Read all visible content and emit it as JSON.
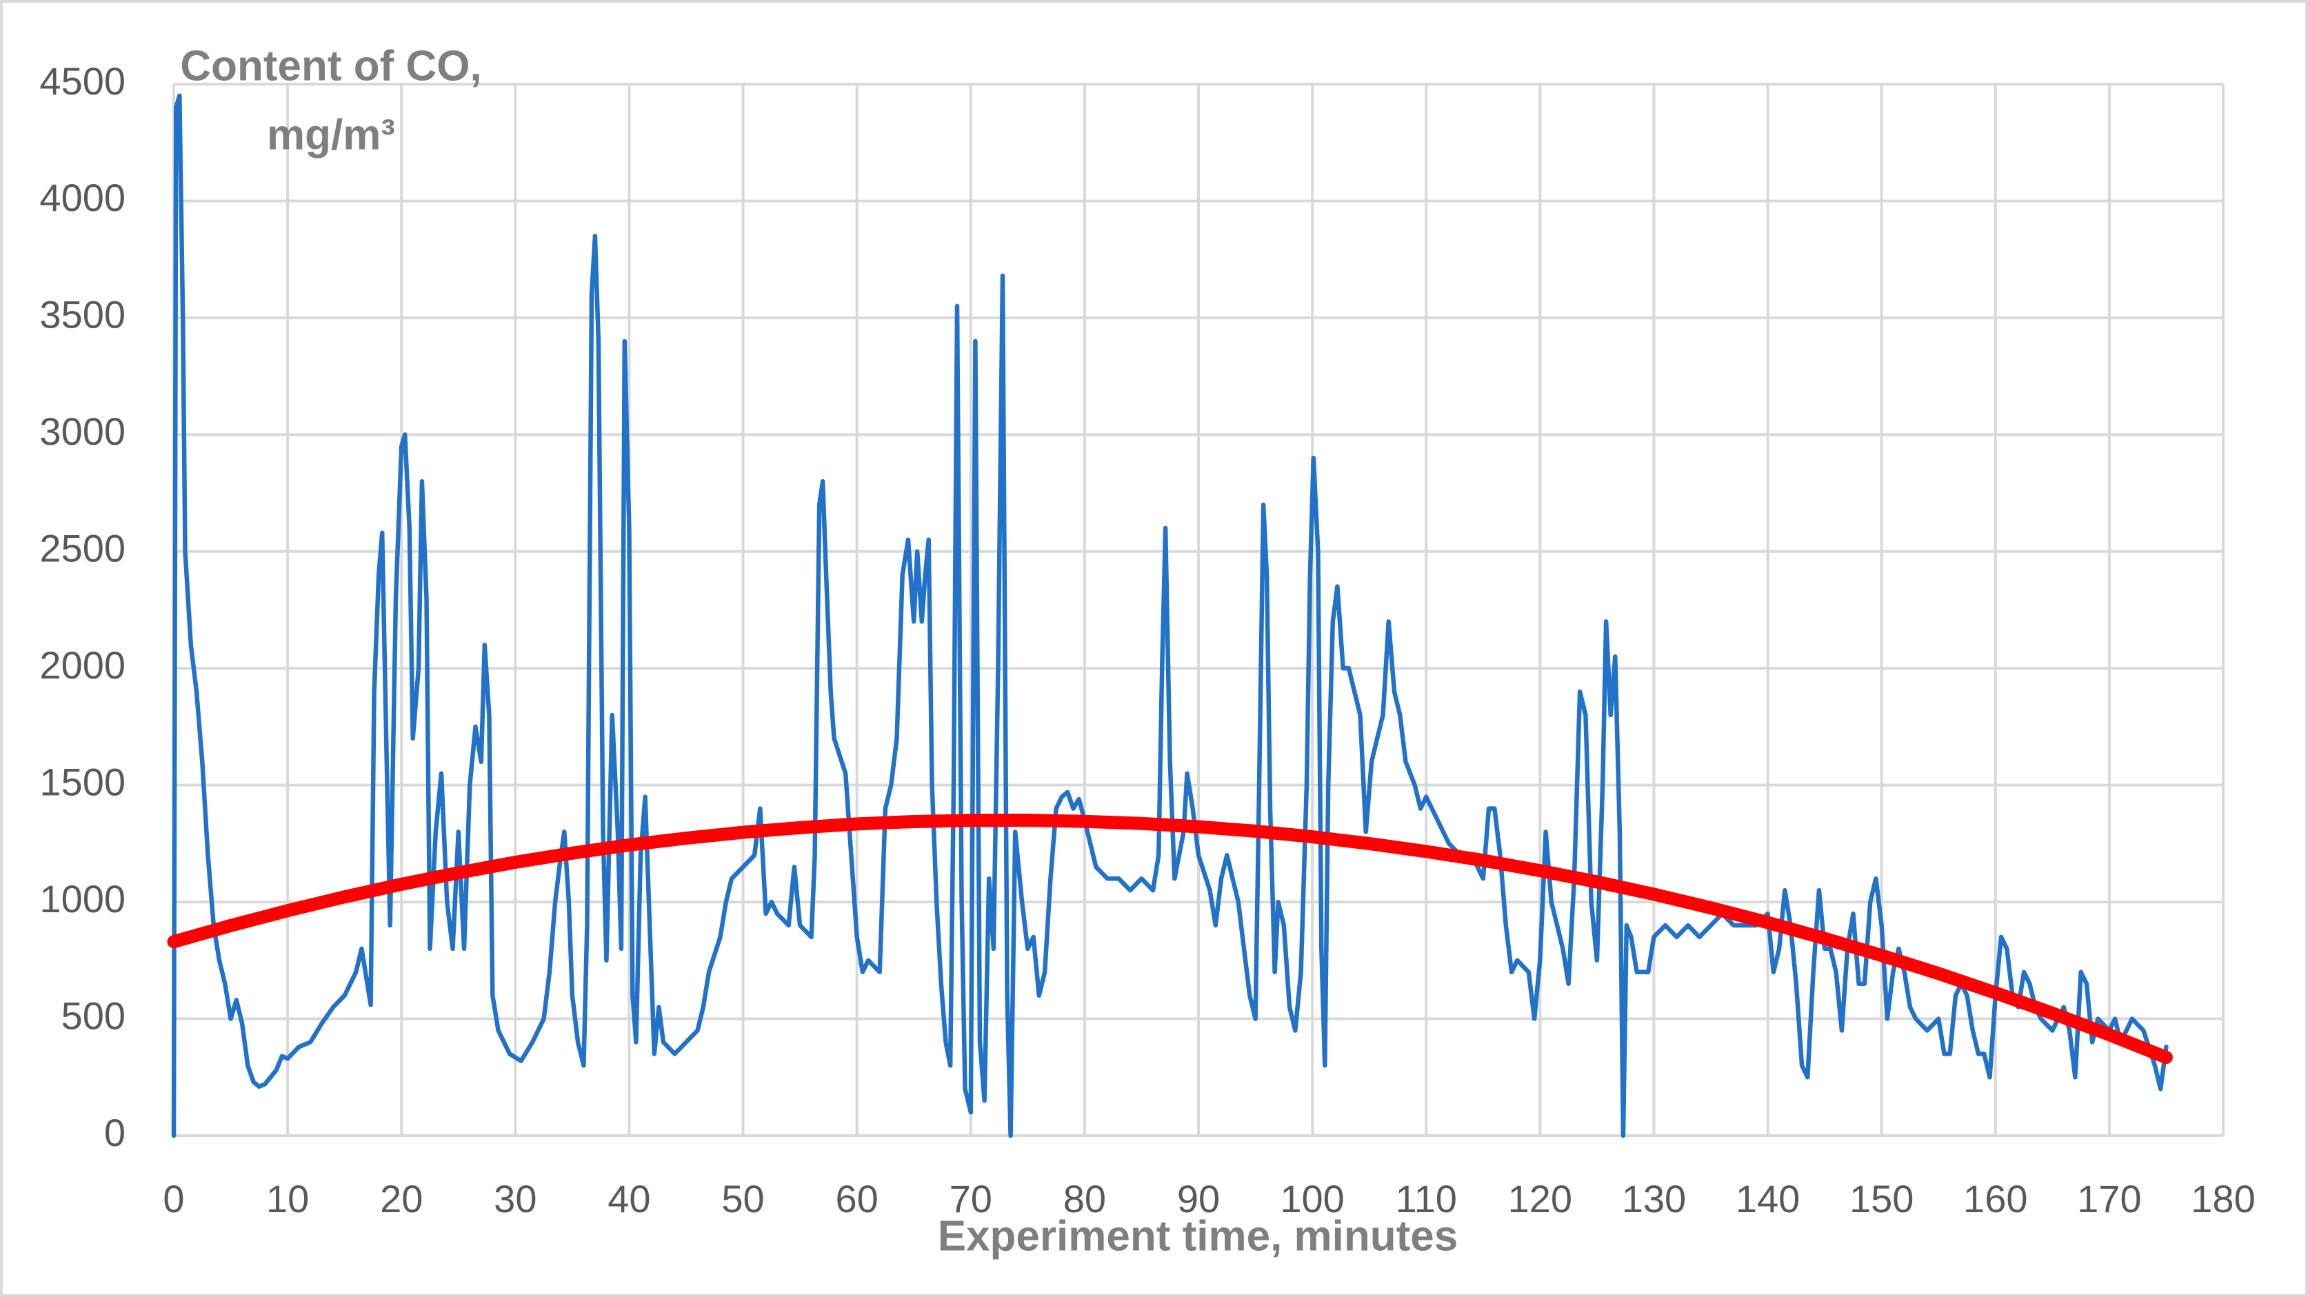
{
  "chart_data": {
    "type": "line",
    "ylabel": [
      "Content of CO,",
      "mg/m³"
    ],
    "xlabel": "Experiment time, minutes",
    "xlim": [
      0,
      180
    ],
    "xticks": [
      0,
      10,
      20,
      30,
      40,
      50,
      60,
      70,
      80,
      90,
      100,
      110,
      120,
      130,
      140,
      150,
      160,
      170,
      180
    ],
    "ylim": [
      0,
      4500
    ],
    "yticks": [
      0,
      500,
      1000,
      1500,
      2000,
      2500,
      3000,
      3500,
      4000,
      4500
    ],
    "grid": true,
    "series": [
      {
        "color": "#2272c9",
        "x": [
          0,
          0.2,
          0.5,
          0.8,
          1,
          1.5,
          2,
          2.5,
          3,
          3.5,
          4,
          4.5,
          5,
          5.5,
          6,
          6.5,
          7,
          7.5,
          8,
          9,
          9.5,
          10,
          11,
          12,
          13,
          14,
          15,
          16,
          16.5,
          17,
          17.3,
          17.6,
          18,
          18.3,
          18.7,
          19,
          19.5,
          20,
          20.3,
          20.7,
          21,
          21.5,
          21.8,
          22.2,
          22.5,
          23,
          23.5,
          24,
          24.5,
          25,
          25.5,
          26,
          26.5,
          27,
          27.3,
          27.7,
          28,
          28.5,
          29.5,
          30.5,
          31.5,
          32.5,
          33,
          33.5,
          34,
          34.3,
          34.7,
          35,
          35.5,
          36,
          36.3,
          36.7,
          37,
          37.3,
          37.7,
          38,
          38.5,
          39,
          39.3,
          39.6,
          40,
          40.3,
          40.6,
          41,
          41.4,
          41.8,
          42.2,
          42.6,
          43,
          44,
          45,
          46,
          46.5,
          47,
          48,
          48.5,
          49,
          50,
          51,
          51.5,
          52,
          52.5,
          53,
          54,
          54.5,
          55,
          56,
          56.3,
          56.7,
          57,
          57.3,
          57.7,
          58,
          59,
          59.5,
          60,
          60.5,
          61,
          62,
          62.5,
          63,
          63.5,
          64,
          64.5,
          65,
          65.3,
          65.7,
          66,
          66.3,
          66.6,
          67,
          67.4,
          67.8,
          68.2,
          68.5,
          68.8,
          69.2,
          69.5,
          70,
          70.4,
          70.8,
          71.2,
          71.6,
          72,
          72.4,
          72.8,
          73.2,
          73.5,
          73.9,
          74.5,
          75,
          75.5,
          76,
          76.5,
          77,
          77.5,
          78,
          78.5,
          79,
          79.5,
          80,
          80.5,
          81,
          82,
          83,
          84,
          85,
          86,
          86.5,
          86.8,
          87.1,
          87.5,
          87.9,
          88.3,
          88.7,
          89,
          89.5,
          90,
          91,
          91.5,
          92,
          92.5,
          93,
          93.5,
          94,
          94.5,
          95,
          95.3,
          95.7,
          96,
          96.3,
          96.7,
          97,
          97.5,
          98,
          98.5,
          99,
          99.5,
          99.8,
          100.1,
          100.5,
          100.8,
          101.1,
          101.4,
          101.8,
          102.2,
          102.7,
          103.2,
          103.7,
          104.2,
          104.7,
          105.2,
          105.7,
          106.2,
          106.7,
          107.2,
          107.7,
          108.2,
          109,
          109.5,
          110,
          111,
          112,
          113,
          114,
          115,
          115.5,
          116,
          116.5,
          117,
          117.5,
          118,
          119,
          119.5,
          120,
          120.5,
          121,
          121.5,
          122,
          122.5,
          123,
          123.5,
          124,
          124.5,
          125,
          125.5,
          125.8,
          126.2,
          126.6,
          127,
          127.3,
          127.6,
          128,
          128.5,
          129.5,
          130,
          131,
          132,
          133,
          134,
          135,
          136,
          137,
          138,
          139,
          140,
          140.5,
          141,
          141.5,
          142,
          142.5,
          143,
          143.5,
          144,
          144.5,
          145,
          145.5,
          146,
          146.5,
          147,
          147.5,
          148,
          148.5,
          149,
          149.5,
          150,
          150.5,
          151,
          151.5,
          152,
          152.5,
          153,
          154,
          155,
          155.5,
          156,
          156.5,
          157,
          157.5,
          158,
          158.5,
          159,
          159.5,
          160,
          160.5,
          161,
          161.5,
          162,
          162.5,
          163,
          163.5,
          164,
          165,
          166,
          166.5,
          167,
          167.5,
          168,
          168.5,
          169,
          170,
          170.5,
          171,
          172,
          173,
          174,
          174.5,
          175
        ],
        "values": [
          0,
          4400,
          4450,
          3500,
          2500,
          2100,
          1900,
          1600,
          1200,
          900,
          750,
          650,
          500,
          580,
          480,
          300,
          230,
          210,
          220,
          280,
          340,
          330,
          380,
          400,
          480,
          550,
          600,
          700,
          800,
          650,
          560,
          1900,
          2400,
          2580,
          1600,
          900,
          2300,
          2950,
          3000,
          2600,
          1700,
          2000,
          2800,
          2300,
          800,
          1300,
          1550,
          1000,
          800,
          1300,
          800,
          1500,
          1750,
          1600,
          2100,
          1800,
          600,
          450,
          350,
          320,
          400,
          500,
          700,
          1000,
          1200,
          1300,
          1000,
          600,
          400,
          300,
          900,
          3600,
          3850,
          3400,
          1300,
          750,
          1800,
          1300,
          800,
          3400,
          2600,
          600,
          400,
          1200,
          1450,
          900,
          350,
          550,
          400,
          350,
          400,
          450,
          550,
          700,
          850,
          1000,
          1100,
          1150,
          1200,
          1400,
          950,
          1000,
          950,
          900,
          1150,
          900,
          850,
          1200,
          2700,
          2800,
          2400,
          1900,
          1700,
          1550,
          1200,
          850,
          700,
          750,
          700,
          1400,
          1500,
          1700,
          2400,
          2550,
          2200,
          2500,
          2200,
          2400,
          2550,
          1500,
          1000,
          650,
          400,
          300,
          1500,
          3550,
          1000,
          200,
          100,
          3400,
          400,
          150,
          1100,
          800,
          2000,
          3680,
          600,
          0,
          1300,
          1000,
          800,
          850,
          600,
          700,
          1100,
          1400,
          1450,
          1470,
          1400,
          1440,
          1350,
          1250,
          1150,
          1100,
          1100,
          1050,
          1100,
          1050,
          1200,
          2000,
          2600,
          1600,
          1100,
          1200,
          1300,
          1550,
          1400,
          1200,
          1050,
          900,
          1100,
          1200,
          1100,
          1000,
          800,
          600,
          500,
          1400,
          2700,
          2400,
          1400,
          700,
          1000,
          900,
          550,
          450,
          700,
          1500,
          2400,
          2900,
          2500,
          800,
          300,
          1500,
          2200,
          2350,
          2000,
          2000,
          1900,
          1800,
          1300,
          1600,
          1700,
          1800,
          2200,
          1900,
          1800,
          1600,
          1500,
          1400,
          1450,
          1350,
          1250,
          1200,
          1200,
          1100,
          1400,
          1400,
          1200,
          900,
          700,
          750,
          700,
          500,
          750,
          1300,
          1000,
          900,
          800,
          650,
          1100,
          1900,
          1800,
          1000,
          750,
          1500,
          2200,
          1800,
          2050,
          1300,
          0,
          900,
          850,
          700,
          700,
          850,
          900,
          850,
          900,
          850,
          900,
          950,
          900,
          900,
          900,
          950,
          700,
          800,
          1050,
          900,
          650,
          300,
          250,
          700,
          1050,
          800,
          800,
          700,
          450,
          800,
          950,
          650,
          650,
          1000,
          1100,
          900,
          500,
          700,
          800,
          700,
          550,
          500,
          450,
          500,
          350,
          350,
          600,
          650,
          600,
          450,
          350,
          350,
          250,
          600,
          850,
          800,
          600,
          550,
          700,
          650,
          550,
          500,
          450,
          550,
          450,
          250,
          700,
          650,
          400,
          500,
          450,
          500,
          400,
          500,
          450,
          300,
          200,
          380
        ]
      },
      {
        "color": "#ff0000",
        "x": [
          0,
          5,
          10,
          15,
          20,
          25,
          30,
          35,
          40,
          45,
          50,
          55,
          60,
          65,
          70,
          75,
          80,
          85,
          90,
          95,
          100,
          105,
          110,
          115,
          120,
          125,
          130,
          135,
          140,
          145,
          150,
          155,
          160,
          165,
          170,
          175
        ],
        "values": [
          830,
          899,
          963,
          1022,
          1076,
          1125,
          1170,
          1209,
          1244,
          1273,
          1298,
          1318,
          1334,
          1344,
          1349,
          1350,
          1345,
          1336,
          1322,
          1303,
          1279,
          1250,
          1216,
          1178,
          1134,
          1086,
          1033,
          975,
          912,
          844,
          771,
          694,
          611,
          524,
          432,
          335
        ]
      }
    ]
  }
}
